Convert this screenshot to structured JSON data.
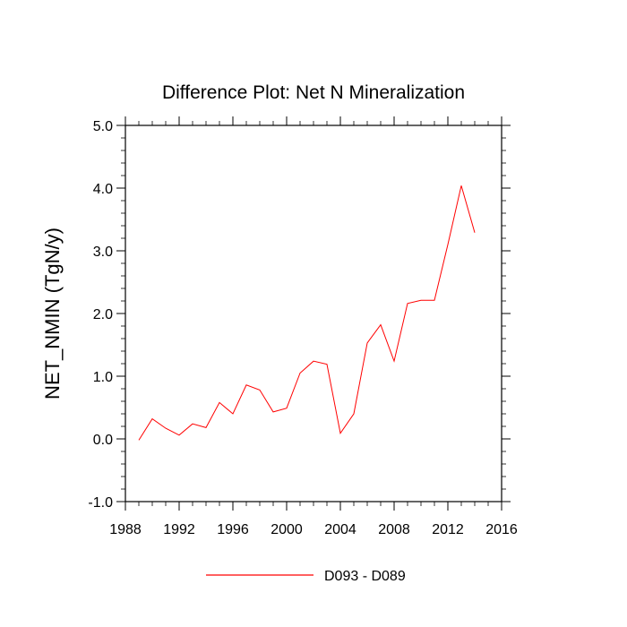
{
  "chart_data": {
    "type": "line",
    "title": "Difference Plot: Net N Mineralization",
    "xlabel": "",
    "ylabel": "NET_NMIN  (TgN/y)",
    "xlim": [
      1988,
      2016
    ],
    "ylim": [
      -1.0,
      5.0
    ],
    "x_ticks": [
      1988,
      1992,
      1996,
      2000,
      2004,
      2008,
      2012,
      2016
    ],
    "x_tick_labels": [
      "1988",
      "1992",
      "1996",
      "2000",
      "2004",
      "2008",
      "2012",
      "2016"
    ],
    "y_ticks": [
      -1.0,
      0.0,
      1.0,
      2.0,
      3.0,
      4.0,
      5.0
    ],
    "y_tick_labels": [
      "-1.0",
      "0.0",
      "1.0",
      "2.0",
      "3.0",
      "4.0",
      "5.0"
    ],
    "legend_position": "bottom-center",
    "series": [
      {
        "name": "D093 - D089",
        "color": "#ff0000",
        "x": [
          1989,
          1990,
          1991,
          1992,
          1993,
          1994,
          1995,
          1996,
          1997,
          1998,
          1999,
          2000,
          2001,
          2002,
          2003,
          2004,
          2005,
          2006,
          2007,
          2008,
          2009,
          2010,
          2011,
          2012,
          2013,
          2014
        ],
        "values": [
          -0.02,
          0.32,
          0.17,
          0.06,
          0.24,
          0.18,
          0.58,
          0.4,
          0.86,
          0.78,
          0.43,
          0.49,
          1.05,
          1.24,
          1.19,
          0.09,
          0.4,
          1.53,
          1.82,
          1.24,
          2.16,
          2.21,
          2.21,
          3.1,
          4.04,
          3.29
        ]
      }
    ]
  }
}
